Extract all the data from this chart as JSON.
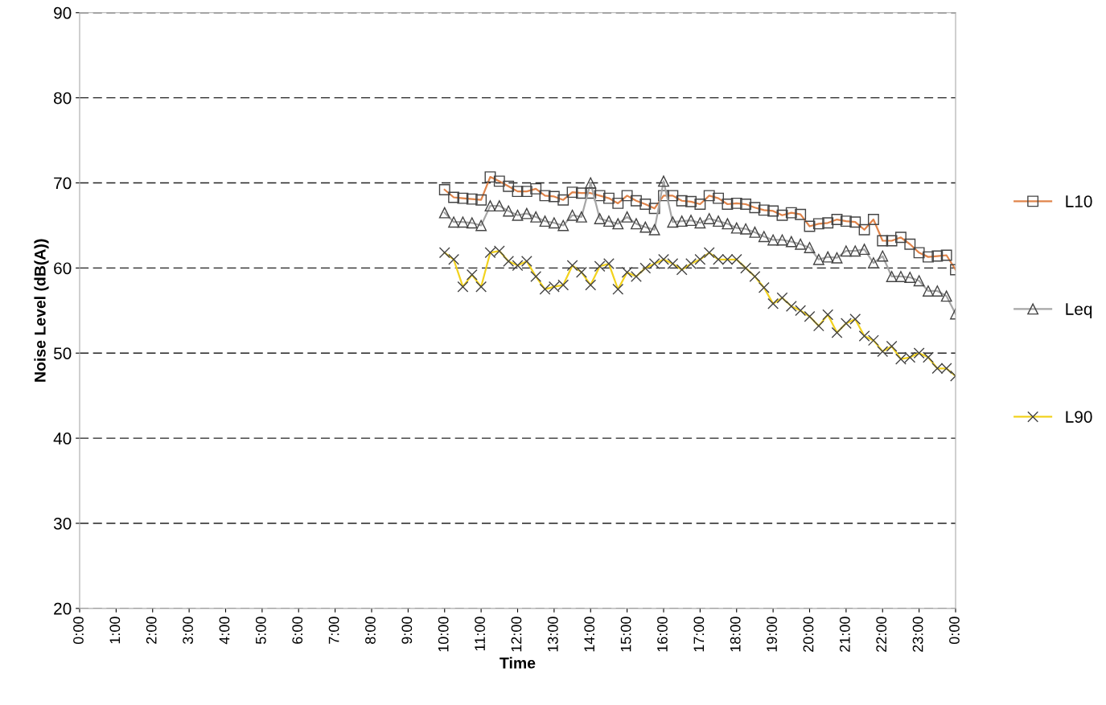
{
  "chart_data": {
    "type": "line",
    "xlabel": "Time",
    "ylabel": "Noise Level (dB(A))",
    "x": [
      10,
      10.25,
      10.5,
      10.75,
      11,
      11.25,
      11.5,
      11.75,
      12,
      12.25,
      12.5,
      12.75,
      13,
      13.25,
      13.5,
      13.75,
      14,
      14.25,
      14.5,
      14.75,
      15,
      15.25,
      15.5,
      15.75,
      16,
      16.25,
      16.5,
      16.75,
      17,
      17.25,
      17.5,
      17.75,
      18,
      18.25,
      18.5,
      18.75,
      19,
      19.25,
      19.5,
      19.75,
      20,
      20.25,
      20.5,
      20.75,
      21,
      21.25,
      21.5,
      21.75,
      22,
      22.25,
      22.5,
      22.75,
      23,
      23.25,
      23.5,
      23.75,
      24
    ],
    "series": [
      {
        "name": "L10",
        "color": "#e0844a",
        "marker": "square",
        "values": [
          69.2,
          68.3,
          68.2,
          68.1,
          68.0,
          70.7,
          70.2,
          69.6,
          69.0,
          69.0,
          69.3,
          68.5,
          68.4,
          68.0,
          68.9,
          68.8,
          68.8,
          68.5,
          68.2,
          67.6,
          68.5,
          67.9,
          67.5,
          67.0,
          68.5,
          68.5,
          67.9,
          67.8,
          67.5,
          68.5,
          68.2,
          67.5,
          67.6,
          67.5,
          67.1,
          66.8,
          66.7,
          66.2,
          66.5,
          66.3,
          64.9,
          65.2,
          65.3,
          65.7,
          65.5,
          65.4,
          64.5,
          65.7,
          63.2,
          63.2,
          63.6,
          62.8,
          61.8,
          61.3,
          61.4,
          61.5,
          59.8
        ]
      },
      {
        "name": "Leq",
        "color": "#a6a6a6",
        "marker": "triangle",
        "values": [
          66.5,
          65.4,
          65.4,
          65.3,
          65.0,
          67.3,
          67.3,
          66.7,
          66.2,
          66.4,
          66.0,
          65.5,
          65.3,
          65.0,
          66.2,
          66.0,
          70.0,
          65.8,
          65.5,
          65.2,
          66.0,
          65.2,
          64.8,
          64.5,
          70.2,
          65.4,
          65.5,
          65.6,
          65.3,
          65.8,
          65.5,
          65.2,
          64.7,
          64.6,
          64.2,
          63.7,
          63.3,
          63.3,
          63.1,
          62.8,
          62.4,
          61.0,
          61.3,
          61.2,
          62.0,
          62.0,
          62.2,
          60.6,
          61.4,
          59.0,
          59.0,
          58.9,
          58.5,
          57.3,
          57.3,
          56.7,
          54.6
        ]
      },
      {
        "name": "L90",
        "color": "#f2d21e",
        "marker": "cross",
        "values": [
          61.8,
          61.0,
          57.8,
          59.2,
          57.8,
          61.8,
          62.0,
          60.8,
          60.3,
          60.8,
          59.0,
          57.5,
          57.8,
          58.0,
          60.3,
          59.5,
          58.0,
          60.2,
          60.5,
          57.5,
          59.5,
          59.0,
          60.0,
          60.5,
          61.0,
          60.5,
          59.8,
          60.5,
          61.0,
          61.8,
          61.0,
          61.0,
          61.0,
          60.0,
          59.0,
          57.7,
          55.8,
          56.5,
          55.5,
          55.0,
          54.3,
          53.2,
          54.5,
          52.4,
          53.5,
          54.0,
          52.0,
          51.5,
          50.2,
          50.8,
          49.3,
          49.5,
          50.0,
          49.5,
          48.2,
          48.2,
          47.3
        ]
      }
    ],
    "xlim": [
      0,
      24
    ],
    "xticks": [
      {
        "value": 0,
        "label": "0:00"
      },
      {
        "value": 1,
        "label": "1:00"
      },
      {
        "value": 2,
        "label": "2:00"
      },
      {
        "value": 3,
        "label": "3:00"
      },
      {
        "value": 4,
        "label": "4:00"
      },
      {
        "value": 5,
        "label": "5:00"
      },
      {
        "value": 6,
        "label": "6:00"
      },
      {
        "value": 7,
        "label": "7:00"
      },
      {
        "value": 8,
        "label": "8:00"
      },
      {
        "value": 9,
        "label": "9:00"
      },
      {
        "value": 10,
        "label": "10:00"
      },
      {
        "value": 11,
        "label": "11:00"
      },
      {
        "value": 12,
        "label": "12:00"
      },
      {
        "value": 13,
        "label": "13:00"
      },
      {
        "value": 14,
        "label": "14:00"
      },
      {
        "value": 15,
        "label": "15:00"
      },
      {
        "value": 16,
        "label": "16:00"
      },
      {
        "value": 17,
        "label": "17:00"
      },
      {
        "value": 18,
        "label": "18:00"
      },
      {
        "value": 19,
        "label": "19:00"
      },
      {
        "value": 20,
        "label": "20:00"
      },
      {
        "value": 21,
        "label": "21:00"
      },
      {
        "value": 22,
        "label": "22:00"
      },
      {
        "value": 23,
        "label": "23:00"
      },
      {
        "value": 24,
        "label": "0:00"
      }
    ],
    "ylim": [
      20,
      90
    ],
    "yticks": [
      20,
      30,
      40,
      50,
      60,
      70,
      80,
      90
    ],
    "grid": "y",
    "legend": "right",
    "line_style": "solid"
  }
}
